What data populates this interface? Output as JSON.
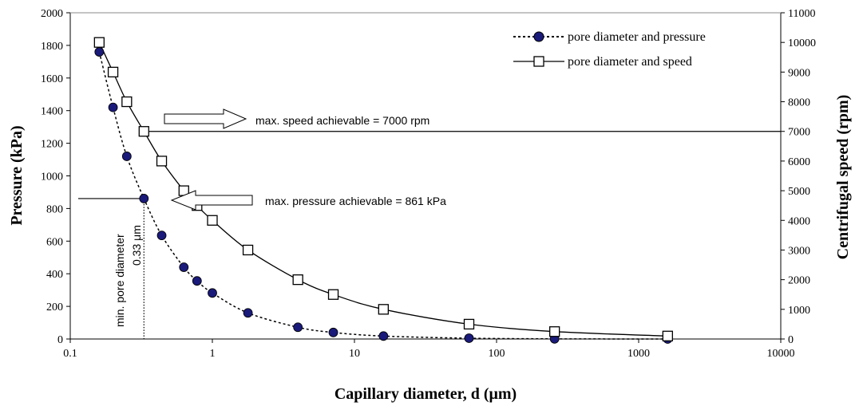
{
  "chart_data": {
    "type": "line",
    "xlabel": "Capillary diameter, d (μm)",
    "ylabel": "Pressure (kPa)",
    "y2label": "Centrifugal speed (rpm)",
    "x_scale": "log",
    "xlim": [
      0.1,
      10000
    ],
    "ylim": [
      0,
      2000
    ],
    "y2lim": [
      0,
      11000
    ],
    "x_ticks": [
      "0.1",
      "1",
      "10",
      "100",
      "1000",
      "10000"
    ],
    "y_ticks": [
      "0",
      "200",
      "400",
      "600",
      "800",
      "1000",
      "1200",
      "1400",
      "1600",
      "1800",
      "2000"
    ],
    "y2_ticks": [
      "0",
      "1000",
      "2000",
      "3000",
      "4000",
      "5000",
      "6000",
      "7000",
      "8000",
      "9000",
      "10000",
      "11000"
    ],
    "grid": false,
    "legend_position": "top-right",
    "series": [
      {
        "name": "pore diameter and pressure",
        "axis": "left",
        "style": "dotted",
        "marker": "filled-circle",
        "color": "#1a1a7a",
        "x": [
          0.16,
          0.2,
          0.25,
          0.33,
          0.44,
          0.63,
          0.78,
          1.0,
          1.78,
          4.0,
          7.1,
          16,
          64,
          256,
          1600
        ],
        "y": [
          1760,
          1420,
          1120,
          861,
          635,
          440,
          356,
          282,
          160,
          72,
          40,
          18,
          5,
          1,
          0
        ]
      },
      {
        "name": "pore diameter and speed",
        "axis": "right",
        "style": "solid",
        "marker": "open-square",
        "color": "#000000",
        "x": [
          0.16,
          0.2,
          0.25,
          0.33,
          0.44,
          0.63,
          0.78,
          1.0,
          1.78,
          4.0,
          7.1,
          16,
          64,
          256,
          1600
        ],
        "y": [
          10000,
          9000,
          8000,
          7000,
          6000,
          5000,
          4500,
          4000,
          3000,
          2000,
          1500,
          1000,
          500,
          250,
          100
        ]
      }
    ],
    "annotations": {
      "speed_line_label": "max. speed achievable = 7000 rpm",
      "speed_line_value": 7000,
      "pressure_line_label": "max. pressure achievable = 861 kPa",
      "pressure_line_value": 861,
      "min_pore_label_1": "min. pore diameter",
      "min_pore_label_2": "0.33 μm",
      "min_pore_value": 0.33
    }
  }
}
